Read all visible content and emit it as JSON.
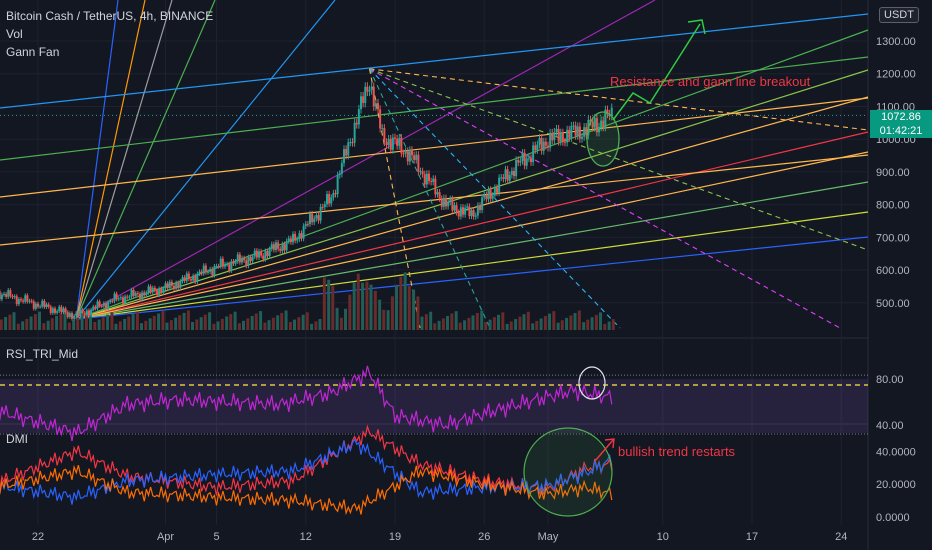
{
  "header": {
    "symbol_line": "Bitcoin Cash / TetherUS, 4h, BINANCE",
    "indicators": [
      "Vol",
      "Gann Fan"
    ],
    "currency": "USDT"
  },
  "price_tag": {
    "price": "1072.86",
    "countdown": "01:42:21"
  },
  "annotations": {
    "breakout": "Resistance and gann line breakout",
    "trend": "bullish trend restarts"
  },
  "colors": {
    "background": "#131722",
    "up": "#26a69a",
    "down": "#ef5350",
    "annotation": "#f23645",
    "arrow": "#2ecc40",
    "rsi": "#c026d3",
    "dmi_adx": "#f23645",
    "dmi_plus": "#2962ff",
    "dmi_minus": "#ff6d00"
  },
  "chart_data": [
    {
      "type": "candlestick",
      "title": "Bitcoin Cash / TetherUS, 4h, BINANCE",
      "y_axis_ticks": [
        500,
        600,
        700,
        800,
        900,
        1000,
        1100,
        1200,
        1300
      ],
      "y_axis_labels": [
        "500.00",
        "600.00",
        "700.00",
        "800.00",
        "900.00",
        "1000.00",
        "1100.00",
        "1200.00",
        "1300.00"
      ],
      "ylim": [
        420,
        1400
      ],
      "x_axis_labels": [
        "22",
        "Apr",
        "5",
        "12",
        "19",
        "26",
        "May",
        "10",
        "17",
        "24"
      ],
      "x_axis_dates": [
        "2021-03-22",
        "2021-04-01",
        "2021-04-05",
        "2021-04-12",
        "2021-04-19",
        "2021-04-26",
        "2021-05-01",
        "2021-05-10",
        "2021-05-17",
        "2021-05-24"
      ],
      "approx_closes": [
        {
          "date": "2021-03-18",
          "close": 540
        },
        {
          "date": "2021-03-25",
          "close": 460
        },
        {
          "date": "2021-03-28",
          "close": 510
        },
        {
          "date": "2021-04-01",
          "close": 545
        },
        {
          "date": "2021-04-05",
          "close": 610
        },
        {
          "date": "2021-04-08",
          "close": 640
        },
        {
          "date": "2021-04-11",
          "close": 690
        },
        {
          "date": "2021-04-14",
          "close": 820
        },
        {
          "date": "2021-04-17",
          "close": 1180
        },
        {
          "date": "2021-04-18",
          "close": 1010
        },
        {
          "date": "2021-04-20",
          "close": 960
        },
        {
          "date": "2021-04-23",
          "close": 800
        },
        {
          "date": "2021-04-25",
          "close": 770
        },
        {
          "date": "2021-04-28",
          "close": 900
        },
        {
          "date": "2021-05-01",
          "close": 1000
        },
        {
          "date": "2021-05-04",
          "close": 1030
        },
        {
          "date": "2021-05-06",
          "close": 1072.86
        }
      ],
      "annotations": [
        "Resistance and gann line breakout"
      ],
      "last_price": 1072.86,
      "overlays": [
        "Vol",
        "Gann Fan"
      ]
    },
    {
      "type": "line",
      "title": "RSI_TRI_Mid",
      "y_axis_labels": [
        "40.00",
        "80.00"
      ],
      "ylim": [
        28,
        90
      ],
      "series": [
        {
          "name": "RSI_TRI_Mid",
          "points": [
            {
              "date": "2021-03-18",
              "value": 55
            },
            {
              "date": "2021-03-25",
              "value": 33
            },
            {
              "date": "2021-03-29",
              "value": 58
            },
            {
              "date": "2021-04-02",
              "value": 62
            },
            {
              "date": "2021-04-06",
              "value": 60
            },
            {
              "date": "2021-04-10",
              "value": 58
            },
            {
              "date": "2021-04-14",
              "value": 68
            },
            {
              "date": "2021-04-17",
              "value": 86
            },
            {
              "date": "2021-04-19",
              "value": 48
            },
            {
              "date": "2021-04-23",
              "value": 40
            },
            {
              "date": "2021-04-26",
              "value": 50
            },
            {
              "date": "2021-04-30",
              "value": 62
            },
            {
              "date": "2021-05-03",
              "value": 70
            },
            {
              "date": "2021-05-06",
              "value": 64
            }
          ]
        }
      ]
    },
    {
      "type": "line",
      "title": "DMI",
      "y_axis_labels": [
        "0.0000",
        "20.0000",
        "40.0000"
      ],
      "ylim": [
        0,
        55
      ],
      "series": [
        {
          "points": [
            {
              "date": "2021-03-18",
              "value": 18
            },
            {
              "date": "2021-03-25",
              "value": 40
            },
            {
              "date": "2021-03-29",
              "value": 25
            },
            {
              "date": "2021-04-05",
              "value": 18
            },
            {
              "date": "2021-04-11",
              "value": 22
            },
            {
              "date": "2021-04-17",
              "value": 52
            },
            {
              "date": "2021-04-21",
              "value": 32
            },
            {
              "date": "2021-04-26",
              "value": 22
            },
            {
              "date": "2021-05-01",
              "value": 17
            },
            {
              "date": "2021-05-04",
              "value": 30
            },
            {
              "date": "2021-05-06",
              "value": 32
            }
          ]
        },
        {
          "points": [
            {
              "date": "2021-03-18",
              "value": 20
            },
            {
              "date": "2021-03-25",
              "value": 12
            },
            {
              "date": "2021-03-29",
              "value": 22
            },
            {
              "date": "2021-04-05",
              "value": 26
            },
            {
              "date": "2021-04-11",
              "value": 28
            },
            {
              "date": "2021-04-16",
              "value": 45
            },
            {
              "date": "2021-04-21",
              "value": 15
            },
            {
              "date": "2021-04-26",
              "value": 18
            },
            {
              "date": "2021-05-01",
              "value": 19
            },
            {
              "date": "2021-05-04",
              "value": 27
            },
            {
              "date": "2021-05-06",
              "value": 35
            }
          ]
        },
        {
          "points": [
            {
              "date": "2021-03-18",
              "value": 17
            },
            {
              "date": "2021-03-25",
              "value": 28
            },
            {
              "date": "2021-03-29",
              "value": 15
            },
            {
              "date": "2021-04-05",
              "value": 12
            },
            {
              "date": "2021-04-11",
              "value": 10
            },
            {
              "date": "2021-04-16",
              "value": 5
            },
            {
              "date": "2021-04-21",
              "value": 28
            },
            {
              "date": "2021-04-26",
              "value": 20
            },
            {
              "date": "2021-05-01",
              "value": 14
            },
            {
              "date": "2021-05-04",
              "value": 18
            },
            {
              "date": "2021-05-06",
              "value": 14
            }
          ]
        }
      ],
      "annotations": [
        "bullish trend restarts"
      ]
    }
  ]
}
